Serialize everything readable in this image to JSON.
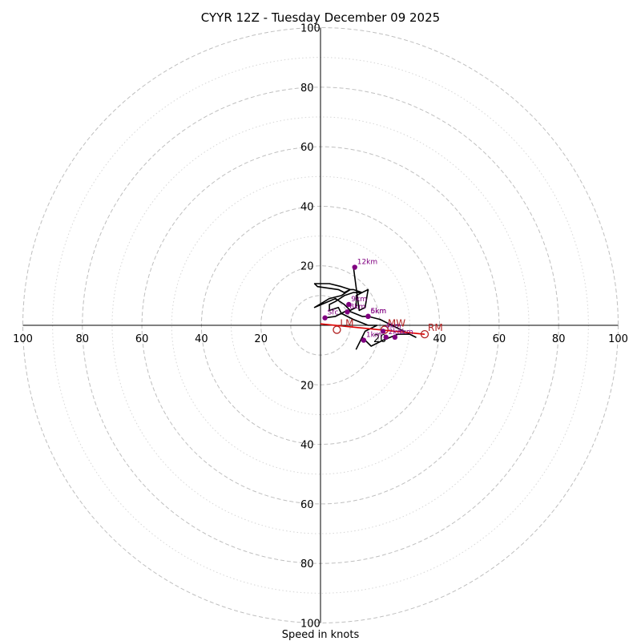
{
  "chart_data": {
    "type": "hodograph",
    "title": "CYYR 12Z - Tuesday December 09 2025",
    "xlabel": "Speed in knots",
    "max_speed": 100,
    "dashed_rings": [
      10,
      20,
      40,
      60,
      80,
      100
    ],
    "dotted_rings": [
      30,
      50,
      70,
      90
    ],
    "x_ticks": [
      "100",
      "80",
      "60",
      "40",
      "20",
      "20",
      "40",
      "60",
      "80",
      "100"
    ],
    "x_tick_values": [
      -100,
      -80,
      -60,
      -40,
      -20,
      20,
      40,
      60,
      80,
      100
    ],
    "y_ticks": [
      "100",
      "80",
      "60",
      "40",
      "20",
      "20",
      "40",
      "60",
      "80",
      "100"
    ],
    "y_tick_values": [
      100,
      80,
      60,
      40,
      20,
      -20,
      -40,
      -60,
      -80,
      -100
    ],
    "hodograph_line": [
      [
        1.5,
        2.5
      ],
      [
        5,
        3
      ],
      [
        9,
        5
      ],
      [
        14,
        3
      ],
      [
        16,
        3
      ],
      [
        20,
        2
      ],
      [
        24,
        0
      ],
      [
        28,
        -2
      ],
      [
        32,
        -4
      ],
      [
        30,
        -3
      ],
      [
        26,
        -3
      ],
      [
        21,
        -5
      ],
      [
        17,
        -7
      ],
      [
        14,
        -4
      ],
      [
        12,
        -8
      ],
      [
        15,
        -2
      ],
      [
        19,
        0
      ],
      [
        16,
        0
      ],
      [
        11,
        2
      ],
      [
        7,
        4
      ],
      [
        6,
        6
      ],
      [
        3,
        5
      ],
      [
        3,
        7
      ],
      [
        5,
        8
      ],
      [
        8,
        10
      ],
      [
        11,
        11
      ],
      [
        12,
        11
      ],
      [
        14,
        11
      ],
      [
        11,
        12
      ],
      [
        10,
        12
      ],
      [
        7,
        13
      ],
      [
        3,
        14
      ],
      [
        -2,
        14
      ],
      [
        -1,
        13
      ],
      [
        6,
        12
      ],
      [
        8,
        11
      ],
      [
        10,
        12
      ],
      [
        7,
        10
      ],
      [
        3,
        9
      ],
      [
        -2,
        6
      ],
      [
        5,
        9
      ],
      [
        8,
        7
      ],
      [
        10,
        5
      ],
      [
        12,
        6
      ],
      [
        12,
        10
      ],
      [
        14,
        11
      ],
      [
        16,
        12
      ],
      [
        15,
        6
      ],
      [
        13,
        5
      ],
      [
        11,
        20
      ]
    ],
    "height_labels": [
      {
        "label": "Sfc",
        "u": 1.5,
        "v": 2.5
      },
      {
        "label": "1km",
        "u": 14.5,
        "v": -5
      },
      {
        "label": "2km",
        "u": 22,
        "v": -4
      },
      {
        "label": "3km",
        "u": 25,
        "v": -4
      },
      {
        "label": "4km",
        "u": 21,
        "v": -2
      },
      {
        "label": "5km",
        "u": 16,
        "v": 3
      },
      {
        "label": "6km",
        "u": 16,
        "v": 3
      },
      {
        "label": "8km",
        "u": 9,
        "v": 4.5
      },
      {
        "label": "9km",
        "u": 9.5,
        "v": 7
      },
      {
        "label": "12km",
        "u": 11.5,
        "v": 19.5
      }
    ],
    "motion_line": [
      [
        0,
        0.5
      ],
      [
        35,
        -3
      ]
    ],
    "storm_motion": [
      {
        "label": "LM",
        "u": 5.5,
        "v": -1.5
      },
      {
        "label": "MW",
        "u": 21.5,
        "v": -1.5
      },
      {
        "label": "RM",
        "u": 35,
        "v": -3
      }
    ],
    "colors": {
      "hodo": "#000000",
      "heights": "#800080",
      "motion": "#b22222",
      "motion_line": "#e00000",
      "grid": "#bfbfbf"
    }
  }
}
